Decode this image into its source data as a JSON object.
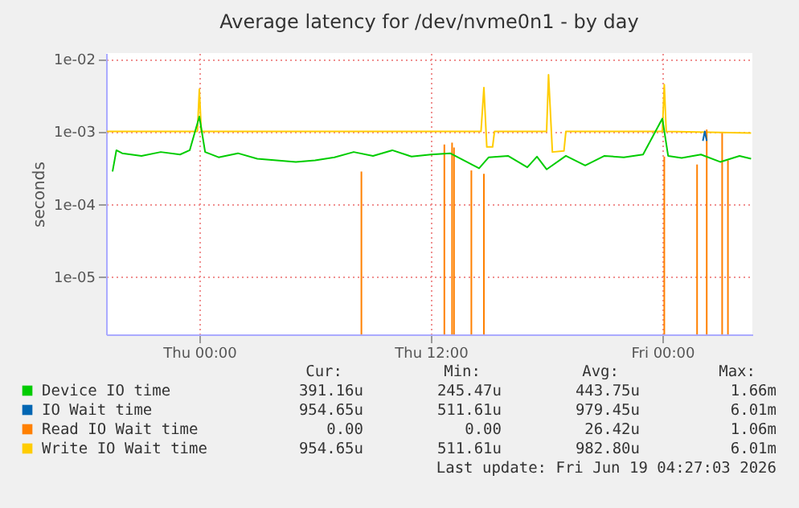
{
  "chart_data": {
    "type": "line",
    "title": "Average latency for /dev/nvme0n1 - by day",
    "ylabel": "seconds",
    "log": "y",
    "grid": true,
    "legend": "bottom",
    "line_style": "solid",
    "marker": "none",
    "xlim": [
      "2026-06-17T19:10",
      "2026-06-19T04:40"
    ],
    "xticks": [
      {
        "value": "2026-06-18T00:00",
        "label": "Thu 00:00"
      },
      {
        "value": "2026-06-18T12:00",
        "label": "Thu 12:00"
      },
      {
        "value": "2026-06-19T00:00",
        "label": "Fri 00:00"
      }
    ],
    "ylim": [
      1.6e-06,
      0.012
    ],
    "yticks": [
      {
        "value": 0.01,
        "label": "1e-02"
      },
      {
        "value": 0.001,
        "label": "1e-03"
      },
      {
        "value": 0.0001,
        "label": "1e-04"
      },
      {
        "value": 1e-05,
        "label": "1e-05"
      }
    ],
    "series": [
      {
        "name": "Device IO time",
        "color": "#00cc00",
        "x": [
          "2026-06-17T19:30",
          "2026-06-17T19:42",
          "2026-06-17T20:00",
          "2026-06-17T21:00",
          "2026-06-17T22:00",
          "2026-06-17T23:00",
          "2026-06-17T23:30",
          "2026-06-18T00:00",
          "2026-06-18T00:18",
          "2026-06-18T01:00",
          "2026-06-18T02:00",
          "2026-06-18T03:00",
          "2026-06-18T04:00",
          "2026-06-18T05:00",
          "2026-06-18T06:00",
          "2026-06-18T07:00",
          "2026-06-18T08:00",
          "2026-06-18T09:00",
          "2026-06-18T10:00",
          "2026-06-18T11:00",
          "2026-06-18T12:00",
          "2026-06-18T13:00",
          "2026-06-18T14:30",
          "2026-06-18T15:00",
          "2026-06-18T16:00",
          "2026-06-18T17:00",
          "2026-06-18T17:30",
          "2026-06-18T18:00",
          "2026-06-18T19:00",
          "2026-06-18T20:00",
          "2026-06-18T21:00",
          "2026-06-18T22:00",
          "2026-06-18T23:00",
          "2026-06-19T00:00",
          "2026-06-19T00:18",
          "2026-06-19T01:00",
          "2026-06-19T02:00",
          "2026-06-19T03:00",
          "2026-06-19T04:00",
          "2026-06-19T04:36"
        ],
        "values": [
          0.00028,
          0.00055,
          0.0005,
          0.00046,
          0.00052,
          0.00048,
          0.00055,
          0.0016,
          0.00052,
          0.00044,
          0.0005,
          0.00042,
          0.0004,
          0.00038,
          0.0004,
          0.00044,
          0.00052,
          0.00046,
          0.00055,
          0.00045,
          0.00048,
          0.0005,
          0.00031,
          0.00044,
          0.00046,
          0.00032,
          0.00045,
          0.0003,
          0.00046,
          0.00034,
          0.00046,
          0.00044,
          0.00048,
          0.0015,
          0.00046,
          0.00043,
          0.00048,
          0.00038,
          0.00046,
          0.00042
        ]
      },
      {
        "name": "IO Wait time",
        "color": "#0066b3",
        "x": [
          "2026-06-19T02:06",
          "2026-06-19T02:12",
          "2026-06-19T02:18"
        ],
        "values": [
          0.00074,
          0.001,
          0.00074
        ]
      },
      {
        "name": "Read IO Wait time",
        "color": "#ff8000",
        "type": "bar",
        "x": [
          "2026-06-18T08:24",
          "2026-06-18T12:42",
          "2026-06-18T13:06",
          "2026-06-18T13:12",
          "2026-06-18T14:06",
          "2026-06-18T14:45",
          "2026-06-19T00:06",
          "2026-06-19T01:48",
          "2026-06-19T02:18",
          "2026-06-19T03:06",
          "2026-06-19T03:24"
        ],
        "values": [
          0.00028,
          0.00066,
          0.0007,
          0.0006,
          0.00029,
          0.00026,
          0.00045,
          0.00035,
          0.00106,
          0.00095,
          0.0004
        ]
      },
      {
        "name": "Write IO Wait time",
        "color": "#ffcc00",
        "x": [
          "2026-06-17T19:12",
          "2026-06-17T23:54",
          "2026-06-18T00:00",
          "2026-06-18T00:06",
          "2026-06-18T14:36",
          "2026-06-18T14:45",
          "2026-06-18T14:54",
          "2026-06-18T15:12",
          "2026-06-18T15:18",
          "2026-06-18T18:00",
          "2026-06-18T18:06",
          "2026-06-18T18:18",
          "2026-06-18T18:54",
          "2026-06-18T19:00",
          "2026-06-19T00:00",
          "2026-06-19T00:06",
          "2026-06-19T00:12",
          "2026-06-19T04:36"
        ],
        "values": [
          0.001,
          0.001,
          0.0038,
          0.001,
          0.001,
          0.004,
          0.00061,
          0.00061,
          0.001,
          0.001,
          0.00601,
          0.00052,
          0.00054,
          0.001,
          0.001,
          0.0044,
          0.001,
          0.00095
        ]
      }
    ],
    "annotations": [
      "Cur:",
      "Min:",
      "Avg:",
      "Max:",
      "391.16u",
      "245.47u",
      "443.75u",
      "1.66m",
      "954.65u",
      "511.61u",
      "979.45u",
      "6.01m",
      "0.00",
      "0.00",
      "26.42u",
      "1.06m",
      "954.65u",
      "511.61u",
      "982.80u",
      "6.01m",
      "Last update: Fri Jun 19 04:27:03 2026"
    ]
  }
}
